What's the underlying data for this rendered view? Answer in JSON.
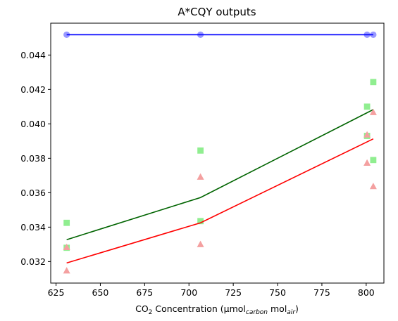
{
  "chart_data": {
    "type": "scatter",
    "title": "A*CQY outputs",
    "xlabel": {
      "prefix": "CO",
      "sub1": "2",
      "mid": " Concentration (µmol",
      "sub2": "carbon",
      "mid2": " mol",
      "sub3": "air",
      "suffix": ")"
    },
    "ylabel": "",
    "xlim": [
      622,
      810
    ],
    "ylim": [
      0.03075,
      0.04585
    ],
    "xticks": [
      625,
      650,
      675,
      700,
      725,
      750,
      775,
      800
    ],
    "yticks": [
      0.032,
      0.034,
      0.036,
      0.038,
      0.04,
      0.042,
      0.044
    ],
    "grid": false,
    "colors": {
      "blue_line": "#0000ff",
      "blue_marker": "#9999ff",
      "green_line": "#006400",
      "green_marker": "#90ee90",
      "red_line": "#ff0000",
      "red_marker": "#f4a0a0"
    },
    "series": [
      {
        "kind": "circle",
        "color": "blue_marker",
        "points": [
          [
            631,
            0.04518
          ],
          [
            706.5,
            0.04518
          ],
          [
            800.5,
            0.04518
          ],
          [
            804,
            0.04518
          ]
        ]
      },
      {
        "kind": "line",
        "color": "blue_line",
        "points": [
          [
            631,
            0.04518
          ],
          [
            706.5,
            0.04518
          ],
          [
            800.5,
            0.04518
          ],
          [
            804,
            0.04518
          ]
        ]
      },
      {
        "kind": "square",
        "color": "green_marker",
        "points": [
          [
            631,
            0.03425
          ],
          [
            631,
            0.0328
          ],
          [
            706.5,
            0.03845
          ],
          [
            706.5,
            0.03435
          ],
          [
            800.5,
            0.041
          ],
          [
            800.5,
            0.0393
          ],
          [
            804,
            0.04243
          ],
          [
            804,
            0.0379
          ]
        ]
      },
      {
        "kind": "line",
        "color": "green_line",
        "points": [
          [
            631,
            0.03327
          ],
          [
            706.5,
            0.03572
          ],
          [
            804,
            0.04083
          ]
        ]
      },
      {
        "kind": "triangle",
        "color": "red_marker",
        "points": [
          [
            631,
            0.03283
          ],
          [
            631,
            0.03147
          ],
          [
            706.5,
            0.03692
          ],
          [
            706.5,
            0.033
          ],
          [
            800.5,
            0.03937
          ],
          [
            800.5,
            0.03773
          ],
          [
            804,
            0.04067
          ],
          [
            804,
            0.03637
          ]
        ]
      },
      {
        "kind": "line",
        "color": "red_line",
        "points": [
          [
            631,
            0.03192
          ],
          [
            706.5,
            0.03425
          ],
          [
            804,
            0.03913
          ]
        ]
      }
    ]
  }
}
